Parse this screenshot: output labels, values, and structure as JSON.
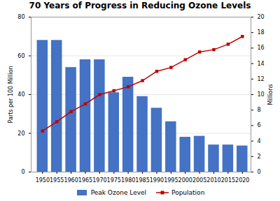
{
  "chart_data": {
    "type": "bar",
    "title": "70 Years of Progress in Reducing Ozone Levels",
    "x": [
      1950,
      1955,
      1960,
      1965,
      1970,
      1975,
      1980,
      1985,
      1990,
      1995,
      2000,
      2005,
      2010,
      2015,
      2020
    ],
    "xlim": [
      1946,
      2023
    ],
    "xticks": [
      1950,
      1955,
      1960,
      1965,
      1970,
      1975,
      1980,
      1985,
      1990,
      1995,
      2000,
      2005,
      2010,
      2015,
      2020
    ],
    "series": [
      {
        "name": "Peak Ozone Level",
        "type": "bar",
        "color": "#4472C4",
        "values": [
          68,
          68,
          54,
          58,
          58,
          41,
          49,
          39,
          33,
          26,
          18,
          18.5,
          14,
          14,
          13.5
        ]
      },
      {
        "name": "Population",
        "type": "line",
        "color": "#C00000",
        "marker": "square",
        "axis": "y2",
        "values": [
          5.3,
          6.5,
          7.8,
          8.8,
          10.0,
          10.5,
          11.0,
          11.8,
          13.0,
          13.5,
          14.5,
          15.5,
          15.8,
          16.5,
          17.5
        ]
      }
    ],
    "ylabel": "Parts per 100 Million",
    "y2label": "Millions",
    "ylim": [
      0,
      80
    ],
    "yticks": [
      0,
      20,
      40,
      60,
      80
    ],
    "y2lim": [
      0,
      20
    ],
    "y2ticks": [
      0,
      2,
      4,
      6,
      8,
      10,
      12,
      14,
      16,
      18,
      20
    ],
    "grid": true,
    "legend": "bottom"
  }
}
